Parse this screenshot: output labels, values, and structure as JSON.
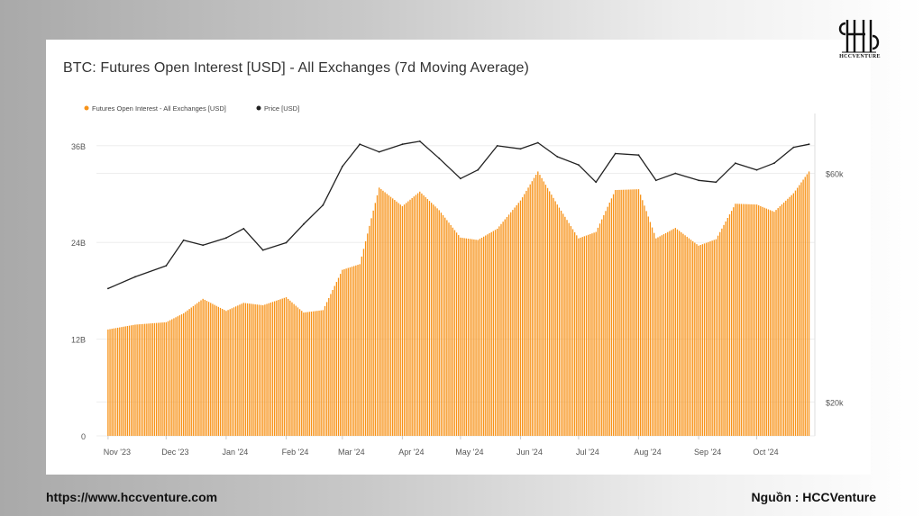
{
  "branding": {
    "logo_text": "HCCVENTURE",
    "footer_url": "https://www.hccventure.com",
    "footer_source": "Nguồn : HCCVenture"
  },
  "colors": {
    "bar": "#f7931a",
    "price_line": "#222222",
    "grid": "#eeeeee",
    "axis_text": "#555555"
  },
  "chart_data": {
    "type": "bar",
    "title": "BTC: Futures Open Interest [USD] - All Exchanges (7d Moving Average)",
    "legend_position": "top-left",
    "grid": true,
    "xlabel": "",
    "ylabel": "",
    "x_tick_labels": [
      "Nov '23",
      "Dec '23",
      "Jan '24",
      "Feb '24",
      "Mar '24",
      "Apr '24",
      "May '24",
      "Jun '24",
      "Jul '24",
      "Aug '24",
      "Sep '24",
      "Oct '24"
    ],
    "left_axis": {
      "ticks": [
        "0",
        "12B",
        "24B",
        "36B"
      ],
      "ylim": [
        0,
        40
      ]
    },
    "right_axis": {
      "ticks": [
        "$20k",
        "$60k"
      ],
      "scale": "log",
      "ylim": [
        17000,
        80000
      ]
    },
    "series": [
      {
        "name": "Futures Open Interest - All Exchanges [USD]",
        "type": "bar",
        "axis": "left",
        "unit": "USD billions",
        "x": [
          "2023-11-01",
          "2023-11-15",
          "2023-12-01",
          "2023-12-10",
          "2023-12-20",
          "2024-01-01",
          "2024-01-10",
          "2024-01-20",
          "2024-02-01",
          "2024-02-10",
          "2024-02-20",
          "2024-03-01",
          "2024-03-10",
          "2024-03-20",
          "2024-04-01",
          "2024-04-10",
          "2024-04-20",
          "2024-05-01",
          "2024-05-10",
          "2024-05-20",
          "2024-06-01",
          "2024-06-10",
          "2024-06-20",
          "2024-07-01",
          "2024-07-10",
          "2024-07-20",
          "2024-08-01",
          "2024-08-10",
          "2024-08-20",
          "2024-09-01",
          "2024-09-10",
          "2024-09-20",
          "2024-10-01",
          "2024-10-10",
          "2024-10-20",
          "2024-10-28"
        ],
        "values": [
          13.2,
          13.8,
          14.1,
          15.2,
          17,
          15.5,
          16.5,
          16.2,
          17.2,
          15.3,
          15.6,
          20.6,
          21.3,
          30.8,
          28.5,
          30.3,
          28,
          24.6,
          24.3,
          25.7,
          29.2,
          32.8,
          28.7,
          24.5,
          25.3,
          30.5,
          30.6,
          24.5,
          25.8,
          23.6,
          24.4,
          28.8,
          28.7,
          27.8,
          30.1,
          32.8
        ]
      },
      {
        "name": "Price [USD]",
        "type": "line",
        "axis": "right",
        "unit": "USD",
        "x": [
          "2023-11-01",
          "2023-11-15",
          "2023-12-01",
          "2023-12-10",
          "2023-12-20",
          "2024-01-01",
          "2024-01-10",
          "2024-01-20",
          "2024-02-01",
          "2024-02-10",
          "2024-02-20",
          "2024-03-01",
          "2024-03-10",
          "2024-03-20",
          "2024-04-01",
          "2024-04-10",
          "2024-04-20",
          "2024-05-01",
          "2024-05-10",
          "2024-05-20",
          "2024-06-01",
          "2024-06-10",
          "2024-06-20",
          "2024-07-01",
          "2024-07-10",
          "2024-07-20",
          "2024-08-01",
          "2024-08-10",
          "2024-08-20",
          "2024-09-01",
          "2024-09-10",
          "2024-09-20",
          "2024-10-01",
          "2024-10-10",
          "2024-10-20",
          "2024-10-28"
        ],
        "values": [
          34500,
          36500,
          38500,
          43500,
          42500,
          44000,
          46000,
          41500,
          43000,
          47000,
          51500,
          62000,
          69000,
          66500,
          69000,
          70000,
          64500,
          58500,
          61000,
          68500,
          67500,
          69500,
          65000,
          62500,
          57500,
          66000,
          65500,
          58000,
          60000,
          58000,
          57500,
          63000,
          61000,
          63000,
          68000,
          69000
        ]
      }
    ]
  }
}
